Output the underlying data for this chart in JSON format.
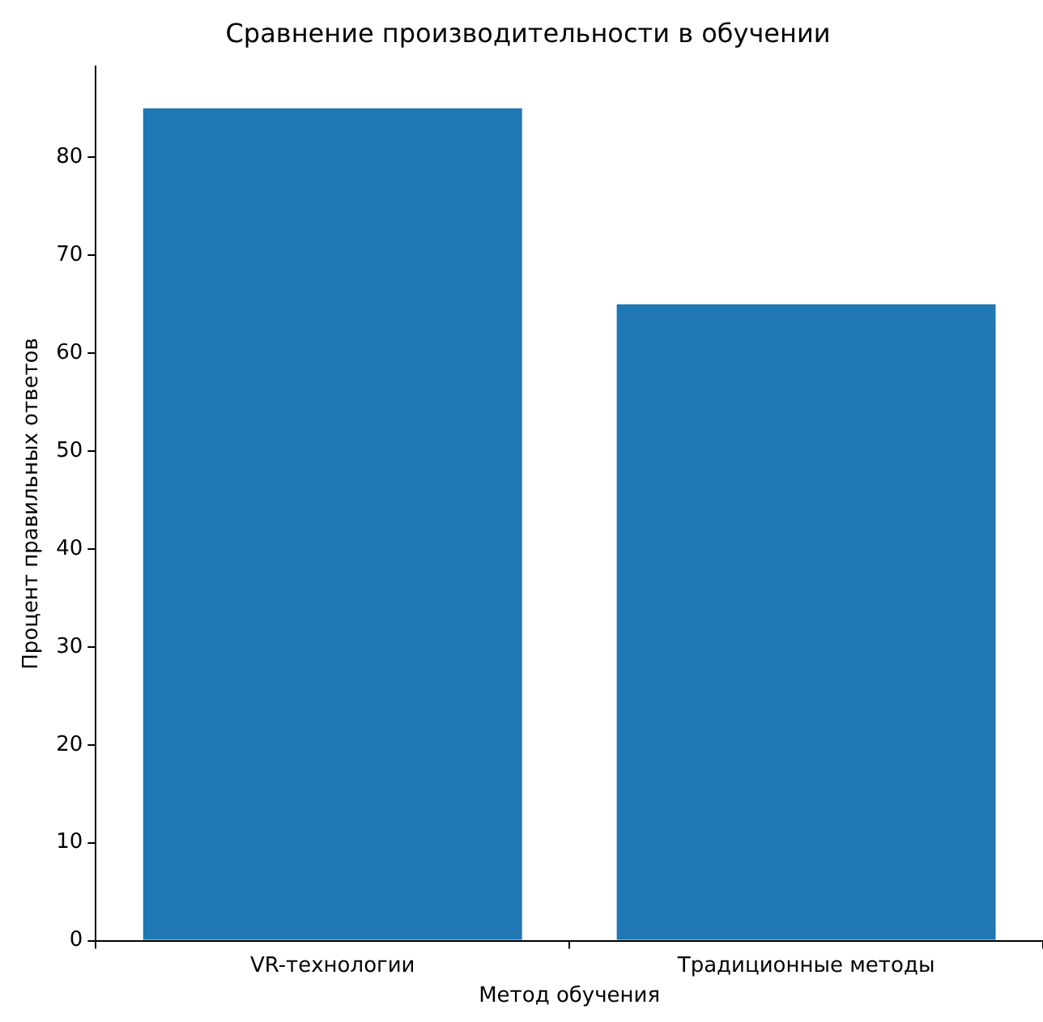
{
  "chart_data": {
    "type": "bar",
    "title": "Сравнение производительности в обучении",
    "xlabel": "Метод обучения",
    "ylabel": "Процент правильных ответов",
    "categories": [
      "VR-технологии",
      "Традиционные методы"
    ],
    "values": [
      85,
      65
    ],
    "color": "#1f77b4",
    "ylim": [
      0,
      89.25
    ],
    "yticks": [
      0,
      10,
      20,
      30,
      40,
      50,
      60,
      70,
      80
    ],
    "grid": false,
    "legend": false
  }
}
